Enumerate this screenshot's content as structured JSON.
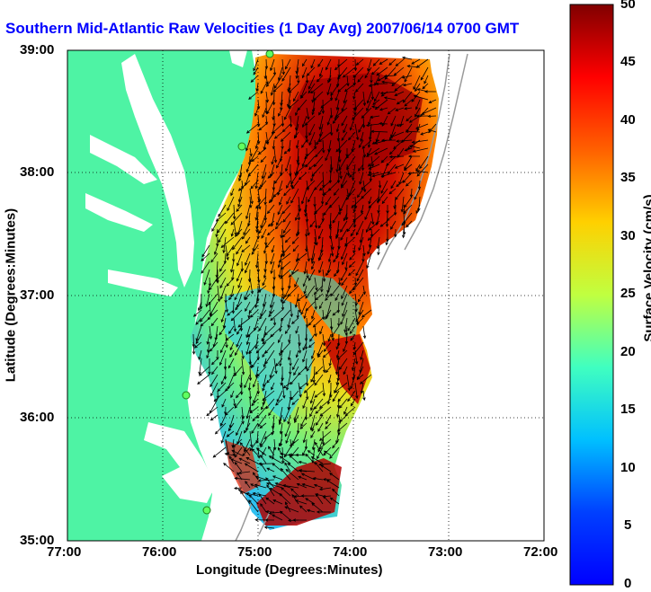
{
  "title": "Southern Mid-Atlantic Raw Velocities (1 Day Avg) 2007/06/14 0700 GMT",
  "axes": {
    "xlabel": "Longitude (Degrees:Minutes)",
    "ylabel": "Latitude (Degrees:Minutes)",
    "xticks": [
      "77:00",
      "76:00",
      "75:00",
      "74:00",
      "73:00",
      "72:00"
    ],
    "yticks": [
      "39:00",
      "38:00",
      "37:00",
      "36:00",
      "35:00"
    ]
  },
  "colorbar": {
    "label": "Surface Velocity (cm/s)",
    "ticks": [
      "50",
      "45",
      "40",
      "35",
      "30",
      "25",
      "20",
      "15",
      "10",
      "5",
      "0"
    ],
    "range": [
      0,
      50
    ],
    "colormap": "jet"
  },
  "colors": {
    "land": "#4ef3a4",
    "water": "#ffffff",
    "title": "#0000ff"
  }
}
